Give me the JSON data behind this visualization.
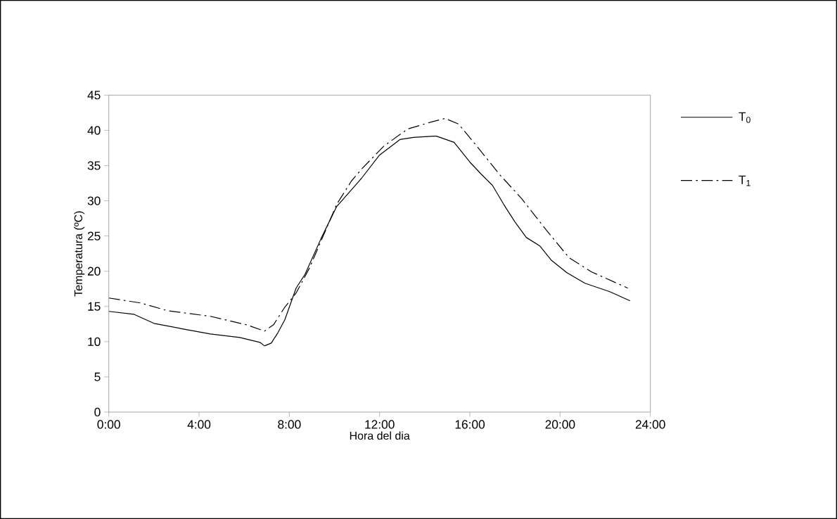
{
  "chart_data": {
    "type": "line",
    "xlabel": "Hora del dia",
    "ylabel": "Temperatura (ºC)",
    "xlim": [
      0,
      24
    ],
    "ylim": [
      0,
      45
    ],
    "xticks": [
      {
        "value": 0,
        "label": "0:00"
      },
      {
        "value": 4,
        "label": "4:00"
      },
      {
        "value": 8,
        "label": "8:00"
      },
      {
        "value": 12,
        "label": "12:00"
      },
      {
        "value": 16,
        "label": "16:00"
      },
      {
        "value": 20,
        "label": "20:00"
      },
      {
        "value": 24,
        "label": "24:00"
      }
    ],
    "yticks": [
      0,
      5,
      10,
      15,
      20,
      25,
      30,
      35,
      40,
      45
    ],
    "grid": false,
    "legend": "right",
    "marker": "none",
    "series": [
      {
        "name": "T$_{0}$",
        "color": "#000000",
        "line_style": "solid",
        "x": [
          0,
          1.1,
          2,
          3.3,
          4.5,
          5.8,
          6.7,
          6.9,
          7.2,
          7.5,
          7.8,
          8.3,
          8.7,
          9.4,
          10.1,
          11.2,
          12,
          12.9,
          13.5,
          14.5,
          15.3,
          16,
          16.5,
          17,
          17.5,
          18,
          18.5,
          19.1,
          19.6,
          20.3,
          21.1,
          22.2,
          23.1
        ],
        "values": [
          14.3,
          13.9,
          12.6,
          11.8,
          11.1,
          10.6,
          9.9,
          9.4,
          9.8,
          11.3,
          13.1,
          17.6,
          19.6,
          24.6,
          29.2,
          33.2,
          36.5,
          38.7,
          39.0,
          39.2,
          38.3,
          35.5,
          33.8,
          32.2,
          29.5,
          27.0,
          24.8,
          23.6,
          21.6,
          19.8,
          18.3,
          17.1,
          15.8
        ]
      },
      {
        "name": "T$_{1}$",
        "color": "#000000",
        "line_style": "dashdot",
        "x": [
          0,
          1.4,
          2.6,
          4.5,
          6.1,
          6.9,
          7.3,
          7.8,
          8.3,
          8.9,
          10.1,
          10.75,
          11.2,
          12.2,
          13.25,
          14.3,
          14.9,
          15.5,
          16.3,
          17.3,
          18.3,
          19.4,
          20.4,
          21.4,
          23
        ],
        "values": [
          16.2,
          15.5,
          14.4,
          13.6,
          12.4,
          11.5,
          12.4,
          14.9,
          16.9,
          20.5,
          29.5,
          32.8,
          34.5,
          37.8,
          40.2,
          41.2,
          41.7,
          40.9,
          37.8,
          33.8,
          30.3,
          25.8,
          21.9,
          19.9,
          17.6
        ]
      }
    ]
  }
}
